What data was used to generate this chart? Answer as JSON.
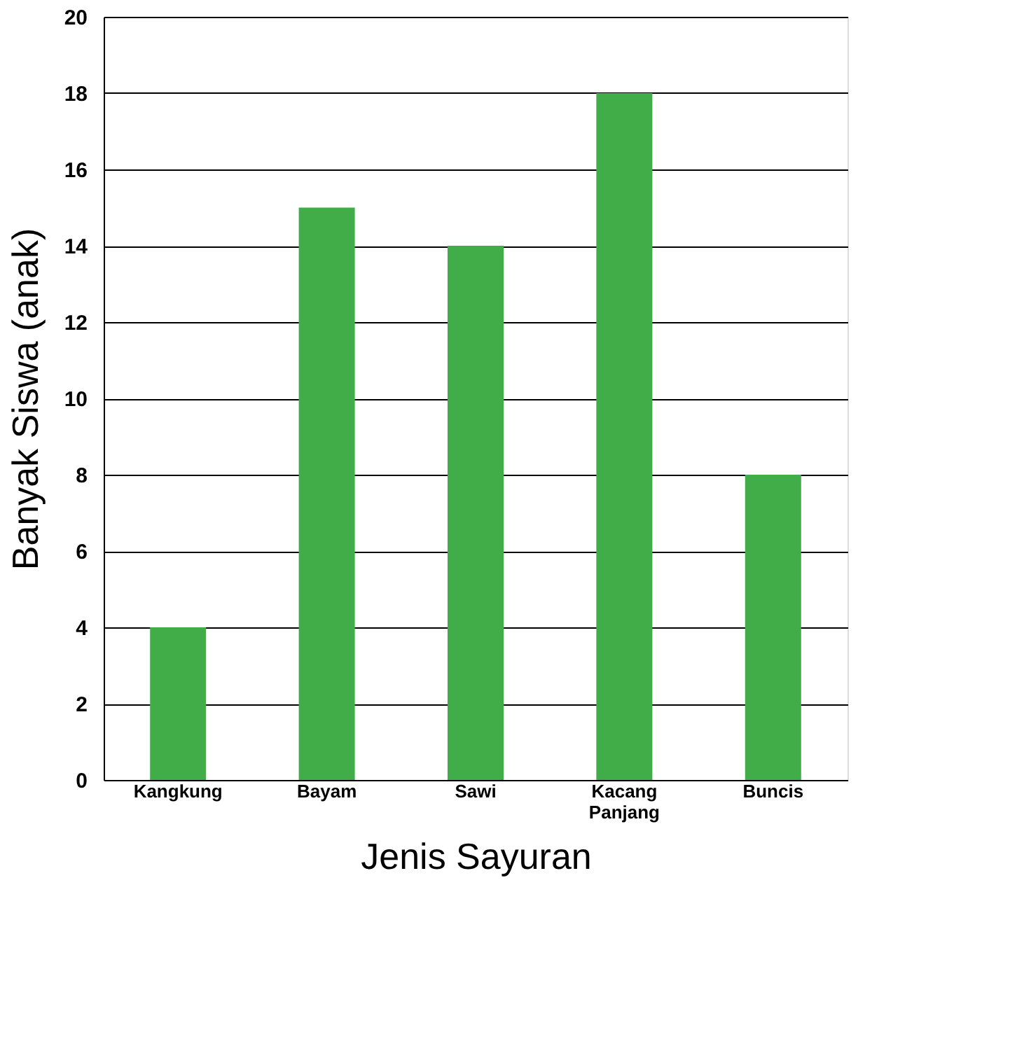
{
  "chart_data": {
    "type": "bar",
    "xlabel": "Jenis Sayuran",
    "ylabel": "Banyak Siswa (anak)",
    "categories": [
      "Kangkung",
      "Bayam",
      "Sawi",
      "Kacang Panjang",
      "Buncis"
    ],
    "values": [
      4,
      15,
      14,
      18,
      8
    ],
    "color": "#41ad49",
    "ylim": [
      0,
      20
    ],
    "yticks": [
      0,
      2,
      4,
      6,
      8,
      10,
      12,
      14,
      16,
      18,
      20
    ],
    "grid": "y"
  }
}
